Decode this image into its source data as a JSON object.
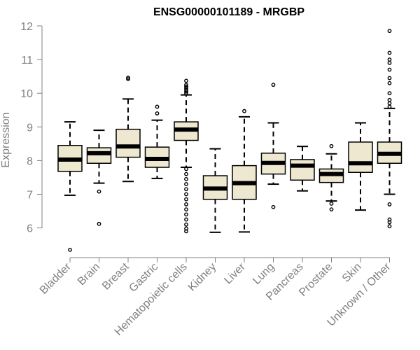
{
  "chart_data": {
    "type": "boxplot",
    "title": "ENSG00000101189 - MRGBP",
    "xlabel": "",
    "ylabel": "Expression",
    "ylim": [
      5.3,
      12.0
    ],
    "yticks": [
      6,
      7,
      8,
      9,
      10,
      11,
      12
    ],
    "grid": false,
    "box_fill": "#efe8d0",
    "categories": [
      "Bladder",
      "Brain",
      "Breast",
      "Gastric",
      "Hematopoietic cells",
      "Kidney",
      "Liver",
      "Lung",
      "Pancreas",
      "Prostate",
      "Skin",
      "Unknown / Other"
    ],
    "series": [
      {
        "q1": 7.68,
        "median": 8.03,
        "q3": 8.45,
        "whisker_low": 6.97,
        "whisker_high": 9.15,
        "outliers": [
          5.35
        ]
      },
      {
        "q1": 7.92,
        "median": 8.22,
        "q3": 8.38,
        "whisker_low": 7.33,
        "whisker_high": 8.9,
        "outliers": [
          7.08,
          6.12
        ]
      },
      {
        "q1": 8.1,
        "median": 8.42,
        "q3": 8.93,
        "whisker_low": 7.38,
        "whisker_high": 9.83,
        "outliers": [
          10.42,
          10.46
        ]
      },
      {
        "q1": 7.8,
        "median": 8.05,
        "q3": 8.4,
        "whisker_low": 7.47,
        "whisker_high": 9.2,
        "outliers": [
          9.4,
          9.6
        ]
      },
      {
        "q1": 8.6,
        "median": 8.92,
        "q3": 9.15,
        "whisker_low": 7.8,
        "whisker_high": 9.95,
        "outliers": [
          10.0,
          10.05,
          10.1,
          10.15,
          10.2,
          10.25,
          10.37,
          7.75,
          7.6,
          7.45,
          7.3,
          7.15,
          7.0,
          6.85,
          6.7,
          6.55,
          6.4,
          6.25,
          6.1,
          5.98,
          5.9
        ]
      },
      {
        "q1": 6.85,
        "median": 7.17,
        "q3": 7.55,
        "whisker_low": 5.87,
        "whisker_high": 8.35,
        "outliers": []
      },
      {
        "q1": 6.85,
        "median": 7.33,
        "q3": 7.85,
        "whisker_low": 5.88,
        "whisker_high": 9.3,
        "outliers": [
          9.47
        ]
      },
      {
        "q1": 7.6,
        "median": 7.93,
        "q3": 8.22,
        "whisker_low": 7.3,
        "whisker_high": 9.12,
        "outliers": [
          6.62,
          10.25
        ]
      },
      {
        "q1": 7.42,
        "median": 7.85,
        "q3": 8.03,
        "whisker_low": 7.1,
        "whisker_high": 8.42,
        "outliers": []
      },
      {
        "q1": 7.35,
        "median": 7.6,
        "q3": 7.75,
        "whisker_low": 6.8,
        "whisker_high": 8.2,
        "outliers": [
          6.72,
          6.55,
          8.43
        ]
      },
      {
        "q1": 7.65,
        "median": 7.92,
        "q3": 8.55,
        "whisker_low": 6.53,
        "whisker_high": 9.12,
        "outliers": []
      },
      {
        "q1": 7.92,
        "median": 8.2,
        "q3": 8.55,
        "whisker_low": 7.0,
        "whisker_high": 9.55,
        "outliers": [
          9.6,
          9.7,
          9.8,
          10.0,
          10.3,
          10.45,
          10.7,
          10.9,
          11.0,
          11.2,
          11.85,
          6.7,
          6.25,
          6.17,
          6.05
        ]
      }
    ]
  }
}
